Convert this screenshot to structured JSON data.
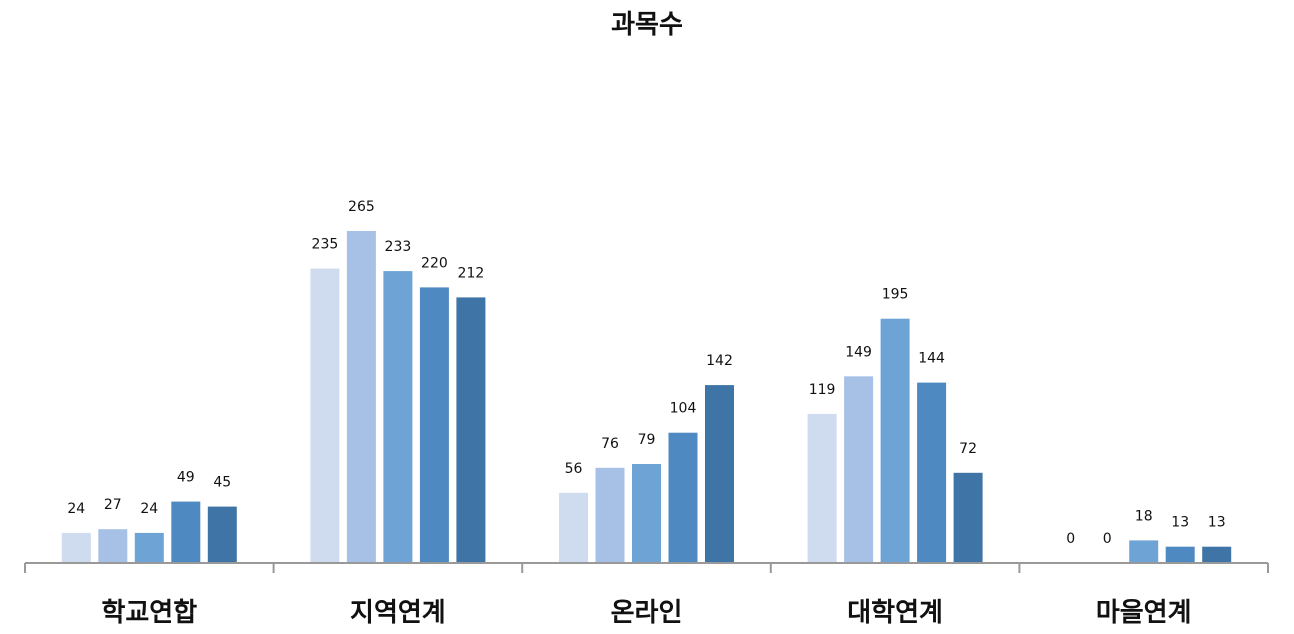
{
  "chart_data": {
    "type": "bar",
    "title": "과목수",
    "categories": [
      "학교연합",
      "지역연계",
      "온라인",
      "대학연계",
      "마을연계"
    ],
    "series": [
      {
        "values": [
          24,
          235,
          56,
          119,
          0
        ],
        "color": "#cfdcef"
      },
      {
        "values": [
          27,
          265,
          76,
          149,
          0
        ],
        "color": "#a7c1e6"
      },
      {
        "values": [
          24,
          233,
          79,
          195,
          18
        ],
        "color": "#6ea3d6"
      },
      {
        "values": [
          49,
          220,
          104,
          144,
          13
        ],
        "color": "#4f89c2"
      },
      {
        "values": [
          45,
          212,
          142,
          72,
          13
        ],
        "color": "#3f74a6"
      }
    ],
    "ylim": [
      0,
      265
    ],
    "legend": "none",
    "grid": false,
    "axis_color": "#999999"
  }
}
